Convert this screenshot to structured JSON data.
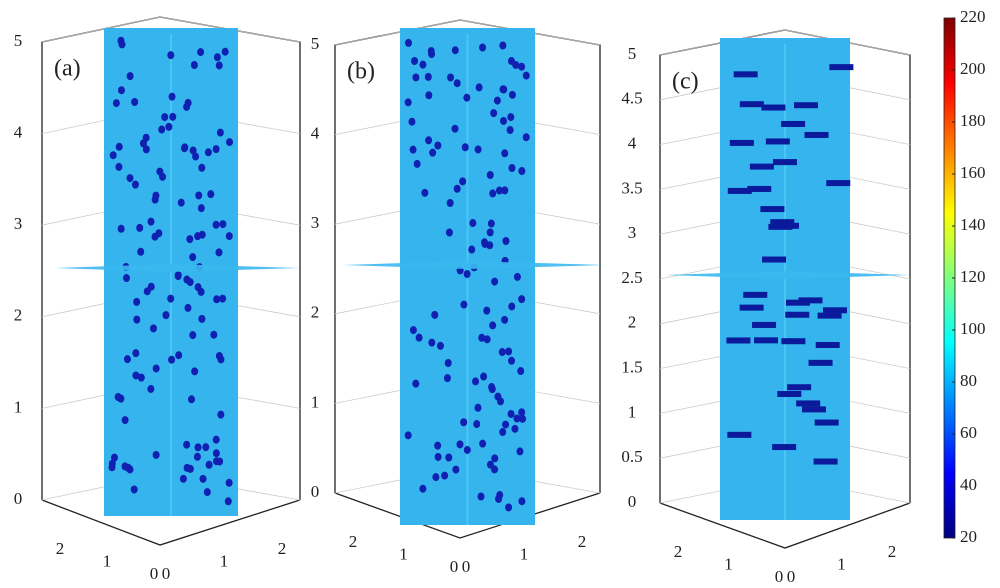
{
  "chart_data": [
    {
      "type": "slice3d",
      "panel_label": "(a)",
      "zlim": [
        0,
        5
      ],
      "zticks": [
        0,
        1,
        2,
        3,
        4,
        5
      ],
      "xticks": [
        2,
        1,
        0
      ],
      "yticks": [
        0,
        1,
        2
      ]
    },
    {
      "type": "slice3d",
      "panel_label": "(b)",
      "zlim": [
        0,
        5
      ],
      "zticks": [
        0,
        1,
        2,
        3,
        4,
        5
      ],
      "xticks": [
        2,
        1,
        0
      ],
      "yticks": [
        0,
        1,
        2
      ]
    },
    {
      "type": "slice3d",
      "panel_label": "(c)",
      "zlim": [
        0,
        5
      ],
      "zticks": [
        0,
        0.5,
        1,
        1.5,
        2,
        2.5,
        3,
        3.5,
        4,
        4.5,
        5
      ],
      "xticks": [
        2,
        1,
        0
      ],
      "yticks": [
        0,
        1,
        2
      ]
    }
  ],
  "colorbar": {
    "clim": [
      20,
      220
    ],
    "ticks": [
      20,
      40,
      60,
      80,
      100,
      120,
      140,
      160,
      180,
      200,
      220
    ],
    "colormap": "jet"
  }
}
